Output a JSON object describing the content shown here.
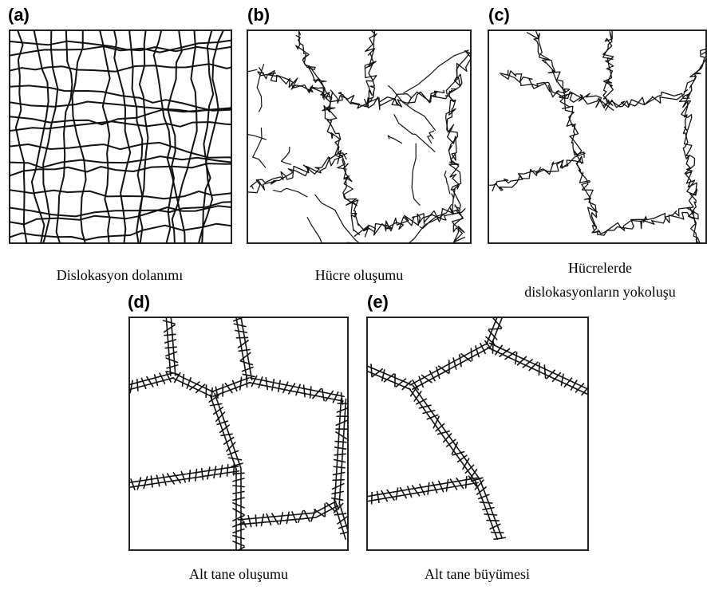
{
  "panels": [
    {
      "letter": "(a)",
      "caption": [
        "Dislokasyon dolanımı"
      ]
    },
    {
      "letter": "(b)",
      "caption": [
        "Hücre oluşumu"
      ]
    },
    {
      "letter": "(c)",
      "caption": [
        "Hücrelerde",
        "dislokasyonların yokoluşu"
      ]
    },
    {
      "letter": "(d)",
      "caption": [
        "Alt tane oluşumu"
      ]
    },
    {
      "letter": "(e)",
      "caption": [
        "Alt tane büyümesi"
      ]
    }
  ]
}
